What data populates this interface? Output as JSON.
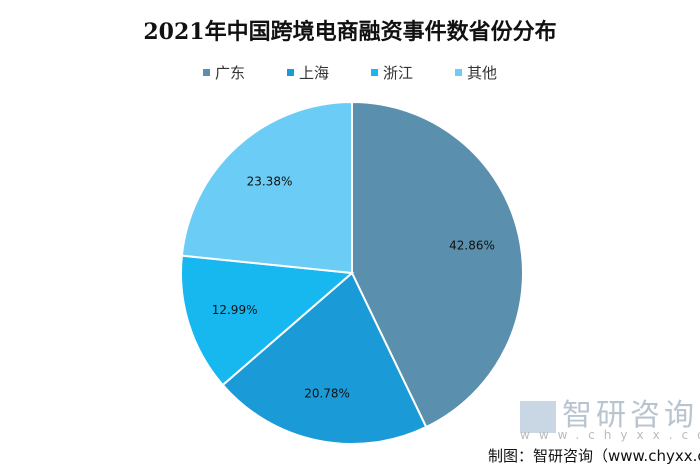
{
  "chart_data": {
    "type": "pie",
    "title": "2021年中国跨境电商融资事件数省份分布",
    "categories": [
      "广东",
      "上海",
      "浙江",
      "其他"
    ],
    "values": [
      42.86,
      20.78,
      12.99,
      23.38
    ],
    "labels": [
      "42.86%",
      "20.78%",
      "12.99%",
      "23.38%"
    ],
    "colors": [
      "#5a8fad",
      "#1a9bd7",
      "#16b8ef",
      "#6bcdf6"
    ],
    "legend_position": "top",
    "start": "top, clockwise"
  },
  "watermark": {
    "name": "智研咨询",
    "url": "www.chyxx.co"
  },
  "source": "制图：智研咨询（www.chyxx.c"
}
